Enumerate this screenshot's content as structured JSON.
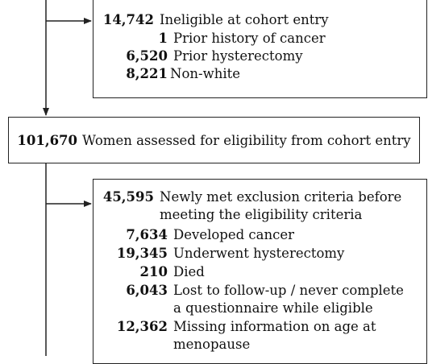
{
  "box_ineligible": {
    "rows": [
      {
        "num": "14,742",
        "text": "Ineligible at cohort entry"
      },
      {
        "num": "1",
        "text": "Prior history of cancer"
      },
      {
        "num": "6,520",
        "text": "Prior hysterectomy"
      },
      {
        "num": "8,221",
        "text": "Non-white"
      }
    ]
  },
  "box_assessed": {
    "num": "101,670",
    "text": "Women assessed for eligibility from cohort entry"
  },
  "box_exclusion": {
    "rows": [
      {
        "num": "45,595",
        "text": "Newly met exclusion criteria before"
      },
      {
        "num": "",
        "text": "meeting the eligibility criteria"
      },
      {
        "num": "7,634",
        "text": "Developed cancer"
      },
      {
        "num": "19,345",
        "text": "Underwent hysterectomy"
      },
      {
        "num": "210",
        "text": "Died"
      },
      {
        "num": "6,043",
        "text": "Lost to follow-up / never complete"
      },
      {
        "num": "",
        "text": "a questionnaire while eligible"
      },
      {
        "num": "12,362",
        "text": "Missing information on age at"
      },
      {
        "num": "",
        "text": "menopause"
      }
    ]
  }
}
